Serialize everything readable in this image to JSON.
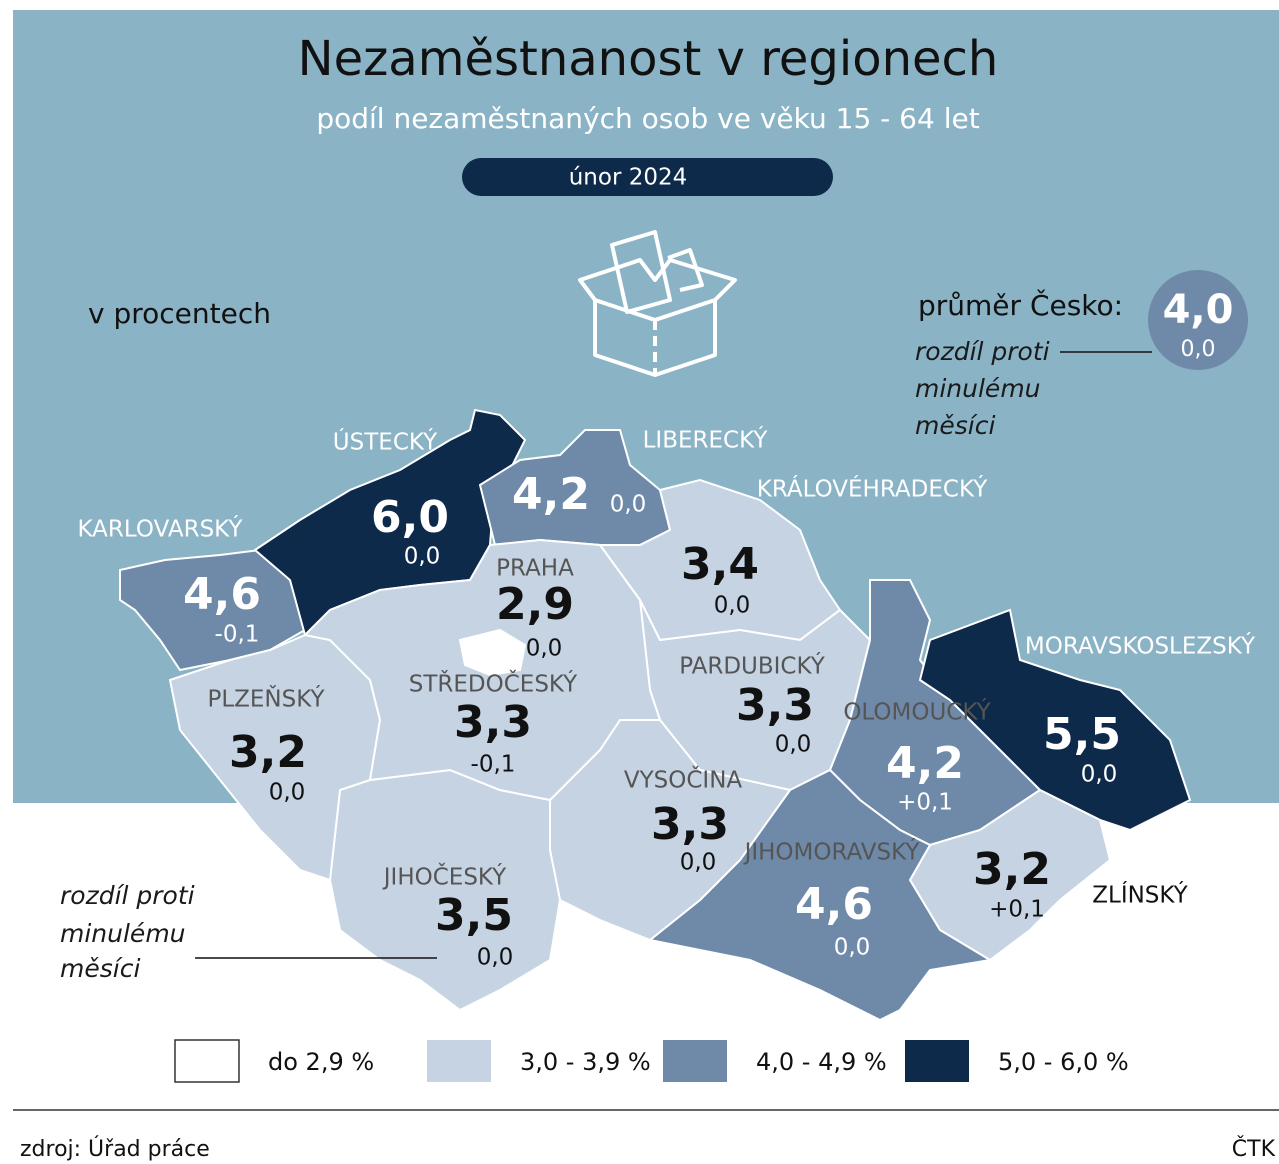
{
  "header": {
    "title": "Nezaměstnanost v regionech",
    "subtitle": "podíl nezaměstnaných osob ve věku 15 - 64 let",
    "period": "únor 2024"
  },
  "unit_note": "v procentech",
  "national": {
    "label": "průměr Česko:",
    "value": "4,0",
    "change": "0,0",
    "color": "#6f89a8",
    "note_lines": [
      "rozdíl proti",
      "minulému",
      "měsíci"
    ]
  },
  "regions": [
    {
      "name": "KARLOVARSKÝ",
      "value": "4,6",
      "change": "-0,1",
      "color": "#6f89a8"
    },
    {
      "name": "ÚSTECKÝ",
      "value": "6,0",
      "change": "0,0",
      "color": "#0d2a4a"
    },
    {
      "name": "LIBERECKÝ",
      "value": "4,2",
      "change": "0,0",
      "color": "#6f89a8"
    },
    {
      "name": "KRÁLOVÉHRADECKÝ",
      "value": "3,4",
      "change": "0,0",
      "color": "#c5d3e3"
    },
    {
      "name": "PARDUBICKÝ",
      "value": "3,3",
      "change": "0,0",
      "color": "#c5d3e3"
    },
    {
      "name": "OLOMOUCKÝ",
      "value": "4,2",
      "change": "+0,1",
      "color": "#6f89a8"
    },
    {
      "name": "MORAVSKOSLEZSKÝ",
      "value": "5,5",
      "change": "0,0",
      "color": "#0d2a4a"
    },
    {
      "name": "ZLÍNSKÝ",
      "value": "3,2",
      "change": "+0,1",
      "color": "#c5d3e3"
    },
    {
      "name": "JIHOMORAVSKÝ",
      "value": "4,6",
      "change": "0,0",
      "color": "#6f89a8"
    },
    {
      "name": "VYSOČINA",
      "value": "3,3",
      "change": "0,0",
      "color": "#c5d3e3"
    },
    {
      "name": "JIHOČESKÝ",
      "value": "3,5",
      "change": "0,0",
      "color": "#c5d3e3"
    },
    {
      "name": "PLZEŇSKÝ",
      "value": "3,2",
      "change": "0,0",
      "color": "#c5d3e3"
    },
    {
      "name": "STŘEDOČESKÝ",
      "value": "3,3",
      "change": "-0,1",
      "color": "#c5d3e3"
    },
    {
      "name": "PRAHA",
      "value": "2,9",
      "change": "0,0",
      "color": "#ffffff"
    }
  ],
  "annotation_lines": [
    "rozdíl proti",
    "minulému",
    "měsíci"
  ],
  "legend": [
    {
      "label": "do 2,9 %",
      "color": "#ffffff"
    },
    {
      "label": "3,0 - 3,9 %",
      "color": "#c5d3e3"
    },
    {
      "label": "4,0 - 4,9 %",
      "color": "#6f89a8"
    },
    {
      "label": "5,0 -  6,0 %",
      "color": "#0d2a4a"
    }
  ],
  "footer": {
    "source": "zdroj: Úřad práce",
    "credit": "ČTK"
  }
}
